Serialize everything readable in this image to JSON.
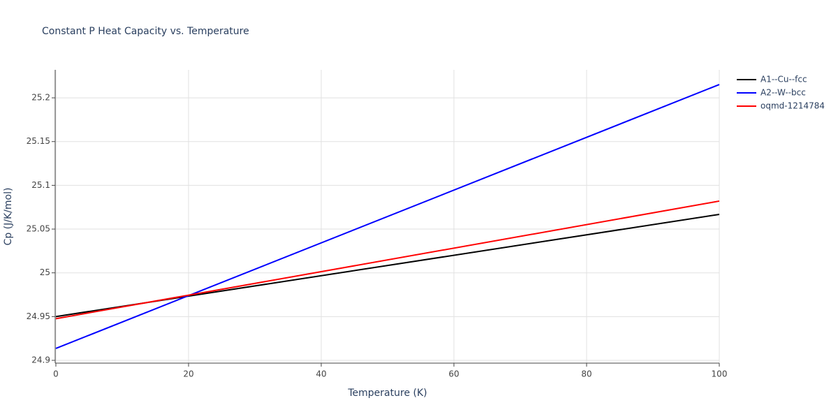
{
  "chart_data": {
    "type": "line",
    "title": "Constant P Heat Capacity vs. Temperature",
    "x_label": "Temperature (K)",
    "y_label": "Cp (J/K/mol)",
    "x": [
      0,
      100
    ],
    "series": [
      {
        "name": "A1--Cu--fcc",
        "color": "#000000",
        "values": [
          24.95,
          25.0668
        ]
      },
      {
        "name": "A2--W--bcc",
        "color": "#0000ff",
        "values": [
          24.9136,
          25.2152
        ]
      },
      {
        "name": "oqmd-1214784",
        "color": "#ff0000",
        "values": [
          24.9476,
          25.082
        ]
      }
    ],
    "xlim": [
      0,
      100
    ],
    "xticks": [
      0,
      20,
      40,
      60,
      80,
      100
    ],
    "ylim": [
      24.8968,
      25.232
    ],
    "yticks": [
      24.9,
      24.95,
      25,
      25.05,
      25.1,
      25.15,
      25.2
    ],
    "grid": true,
    "legend": "right"
  }
}
